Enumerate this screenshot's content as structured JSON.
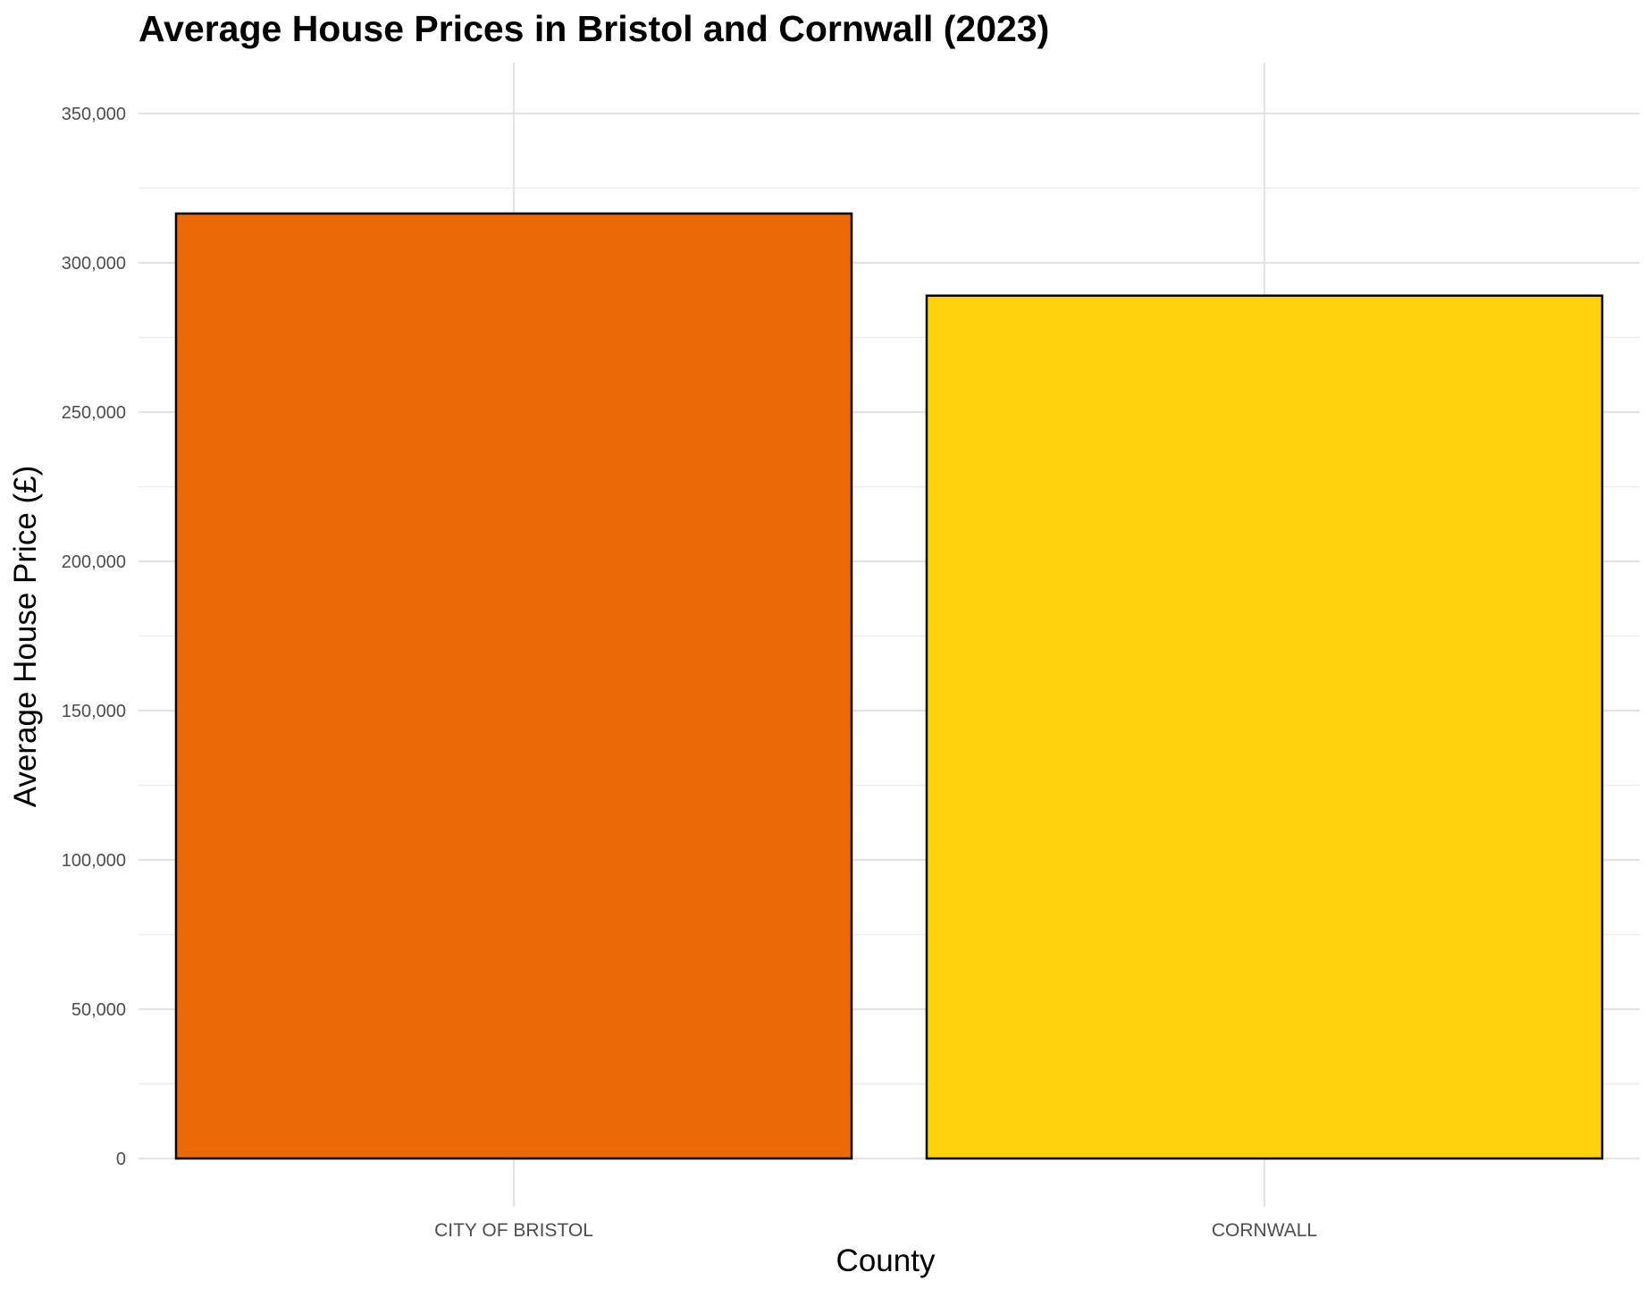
{
  "chart_data": {
    "type": "bar",
    "title": "Average House Prices in Bristol and Cornwall (2023)",
    "xlabel": "County",
    "ylabel": "Average House Price (£)",
    "categories": [
      "CITY OF BRISTOL",
      "CORNWALL"
    ],
    "values": [
      316500,
      289000
    ],
    "colors": [
      "#EB6A07",
      "#FED10C"
    ],
    "bar_outline": "#000000",
    "ylim": [
      0,
      365000
    ],
    "yticks": [
      0,
      50000,
      100000,
      150000,
      200000,
      250000,
      300000,
      350000
    ],
    "ytick_labels": [
      "0",
      "50,000",
      "100,000",
      "150,000",
      "200,000",
      "250,000",
      "300,000",
      "350,000"
    ],
    "grid": true,
    "legend": "none"
  }
}
